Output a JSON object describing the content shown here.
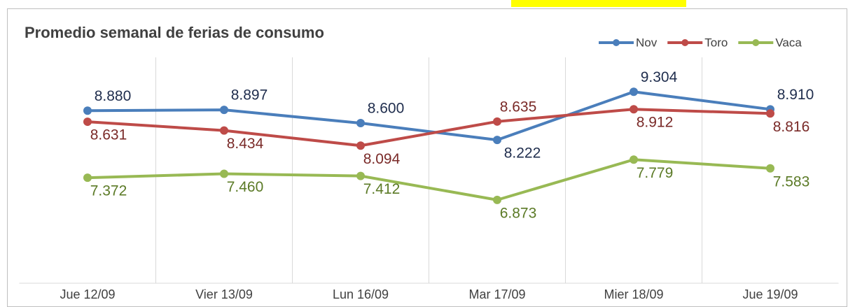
{
  "chart_data": {
    "type": "line",
    "title": "Promedio semanal de ferias de consumo",
    "categories": [
      "Jue 12/09",
      "Vier 13/09",
      "Lun 16/09",
      "Mar 17/09",
      "Mier 18/09",
      "Jue 19/09"
    ],
    "series": [
      {
        "name": "Nov",
        "color": "#4a7ebb",
        "label_color": "#1f2d4d",
        "values": [
          8880,
          8897,
          8600,
          8222,
          9304,
          8910
        ],
        "value_labels": [
          "8.880",
          "8.897",
          "8.600",
          "8.222",
          "9.304",
          "8.910"
        ]
      },
      {
        "name": "Toro",
        "color": "#be4b48",
        "label_color": "#7a2a28",
        "values": [
          8631,
          8434,
          8094,
          8635,
          8912,
          8816
        ],
        "value_labels": [
          "8.631",
          "8.434",
          "8.094",
          "8.635",
          "8.912",
          "8.816"
        ]
      },
      {
        "name": "Vaca",
        "color": "#98b954",
        "label_color": "#5b7a26",
        "values": [
          7372,
          7460,
          7412,
          6873,
          7779,
          7583
        ],
        "value_labels": [
          "7.372",
          "7.460",
          "7.412",
          "6.873",
          "7.779",
          "7.583"
        ]
      }
    ],
    "ylim": [
      5000,
      10000
    ],
    "grid": true,
    "legend": "top-right"
  }
}
